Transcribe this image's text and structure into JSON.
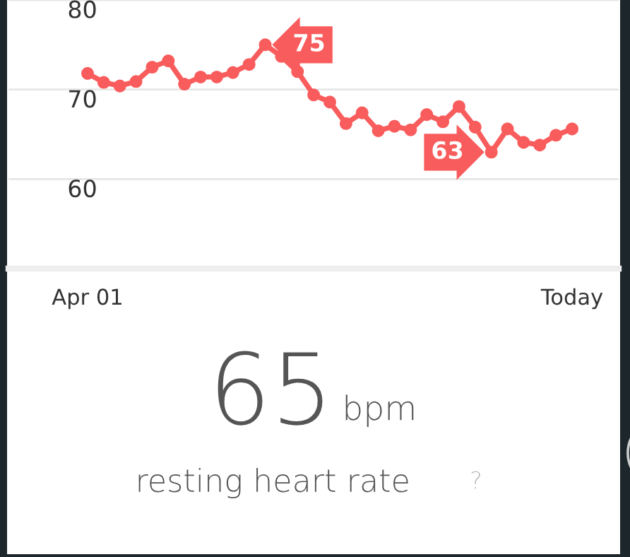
{
  "chart_data": {
    "type": "line",
    "categories": [
      "Apr 01",
      null,
      null,
      null,
      null,
      null,
      null,
      null,
      null,
      null,
      null,
      null,
      null,
      null,
      null,
      null,
      null,
      null,
      null,
      null,
      null,
      null,
      null,
      null,
      null,
      null,
      null,
      null,
      null,
      null,
      "Today"
    ],
    "series": [
      {
        "color": "#f95c5c",
        "values": [
          71.8,
          70.8,
          70.4,
          70.9,
          72.5,
          73.2,
          70.6,
          71.4,
          71.4,
          71.9,
          72.8,
          75,
          73.7,
          72.0,
          69.4,
          68.6,
          66.2,
          67.4,
          65.4,
          65.9,
          65.5,
          67.2,
          66.4,
          68.1,
          65.8,
          63,
          65.6,
          64.1,
          63.8,
          64.9,
          65.6
        ],
        "value_labels": [
          null,
          null,
          null,
          null,
          null,
          null,
          null,
          null,
          null,
          null,
          null,
          "75",
          null,
          null,
          null,
          null,
          null,
          null,
          null,
          null,
          null,
          null,
          null,
          null,
          null,
          "63",
          null,
          null,
          null,
          null,
          null
        ]
      }
    ],
    "ylim": [
      50,
      80
    ],
    "yticks": [
      60,
      70,
      80
    ],
    "grid": "y",
    "marker": "circle",
    "line_style": "solid",
    "annotations": [
      "65",
      "bpm",
      "resting heart rate",
      "?"
    ]
  }
}
